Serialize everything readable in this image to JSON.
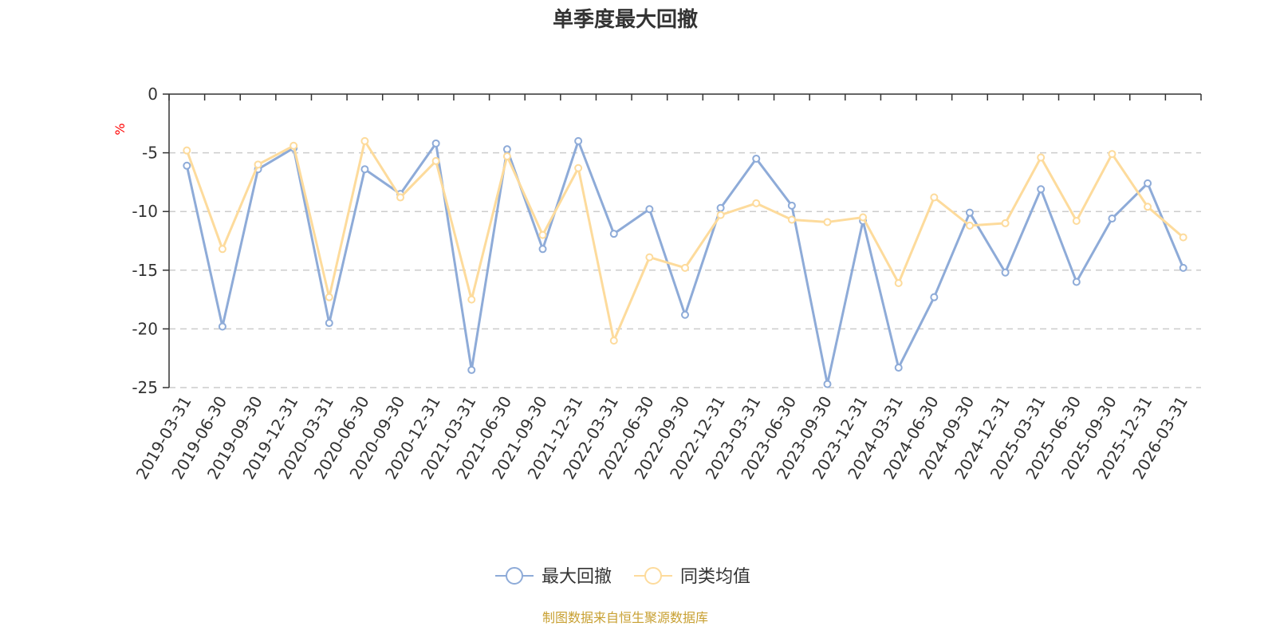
{
  "chart_data": {
    "type": "line",
    "title": "单季度最大回撤",
    "ylabel": "%",
    "ylim": [
      -25,
      0
    ],
    "yticks": [
      0,
      -5,
      -10,
      -15,
      -20,
      -25
    ],
    "grid": true,
    "legend_position": "bottom",
    "categories": [
      "2019-03-31",
      "2019-06-30",
      "2019-09-30",
      "2019-12-31",
      "2020-03-31",
      "2020-06-30",
      "2020-09-30",
      "2020-12-31",
      "2021-03-31",
      "2021-06-30",
      "2021-09-30",
      "2021-12-31",
      "2022-03-31",
      "2022-06-30",
      "2022-09-30",
      "2022-12-31",
      "2023-03-31",
      "2023-06-30",
      "2023-09-30",
      "2023-12-31",
      "2024-03-31",
      "2024-06-30",
      "2024-09-30",
      "2024-12-31",
      "2025-03-31",
      "2025-06-30",
      "2025-09-30",
      "2025-12-31",
      "2026-03-31"
    ],
    "series": [
      {
        "name": "最大回撤",
        "color": "#8eabd8",
        "values": [
          -6.1,
          -19.8,
          -6.4,
          -4.6,
          -19.5,
          -6.4,
          -8.5,
          -4.2,
          -23.5,
          -4.7,
          -13.2,
          -4.0,
          -11.9,
          -9.8,
          -18.8,
          -9.7,
          -5.5,
          -9.5,
          -24.7,
          -10.8,
          -23.3,
          -17.3,
          -10.1,
          -15.2,
          -8.1,
          -16.0,
          -10.6,
          -7.6,
          -14.8
        ]
      },
      {
        "name": "同类均值",
        "color": "#fddb9c",
        "values": [
          -4.8,
          -13.2,
          -6.0,
          -4.4,
          -17.3,
          -4.0,
          -8.8,
          -5.7,
          -17.5,
          -5.3,
          -12.0,
          -6.3,
          -21.0,
          -13.9,
          -14.8,
          -10.3,
          -9.3,
          -10.7,
          -10.9,
          -10.5,
          -16.1,
          -8.8,
          -11.2,
          -11.0,
          -5.4,
          -10.8,
          -5.1,
          -9.6,
          -12.2
        ]
      }
    ],
    "unit_color": "#ff0000",
    "source_text": "制图数据来自恒生聚源数据库",
    "source_color": "#c8a032"
  }
}
